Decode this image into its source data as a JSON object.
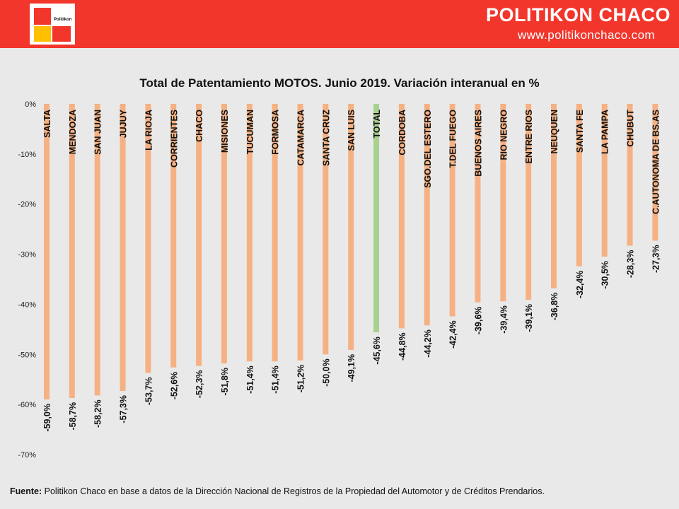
{
  "header": {
    "logo_text": "Politikon",
    "brand_name": "POLITIKON CHACO",
    "brand_url": "www.politikonchaco.com",
    "colors": {
      "bar_red": "#f2362c",
      "logo_red": "#f2362c",
      "logo_yellow": "#ffc000"
    }
  },
  "footer": {
    "label": "Fuente:",
    "text": "Politikon Chaco en base a datos de la Dirección Nacional de Registros de la Propiedad del Automotor y de Créditos Prendarios."
  },
  "chart_data": {
    "type": "bar",
    "title": "Total de Patentamiento MOTOS. Junio 2019. Variación interanual en %",
    "xlabel": "",
    "ylabel": "",
    "ylim": [
      -70,
      0
    ],
    "yticks": [
      "0%",
      "-10%",
      "-20%",
      "-30%",
      "-40%",
      "-50%",
      "-60%",
      "-70%"
    ],
    "ytick_values": [
      0,
      -10,
      -20,
      -30,
      -40,
      -50,
      -60,
      -70
    ],
    "grid": false,
    "categories": [
      "SALTA",
      "MENDOZA",
      "SAN JUAN",
      "JUJUY",
      "LA RIOJA",
      "CORRIENTES",
      "CHACO",
      "MISIONES",
      "TUCUMAN",
      "FORMOSA",
      "CATAMARCA",
      "SANTA CRUZ",
      "SAN LUIS",
      "TOTAL",
      "CORDOBA",
      "SGO.DEL ESTERO",
      "T.DEL FUEGO",
      "BUENOS AIRES",
      "RIO NEGRO",
      "ENTRE RIOS",
      "NEUQUEN",
      "SANTA FE",
      "LA PAMPA",
      "CHUBUT",
      "C.AUTONOMA DE BS.AS"
    ],
    "values": [
      -59.0,
      -58.7,
      -58.2,
      -57.3,
      -53.7,
      -52.6,
      -52.3,
      -51.8,
      -51.4,
      -51.4,
      -51.2,
      -50.0,
      -49.1,
      -45.6,
      -44.8,
      -44.2,
      -42.4,
      -39.6,
      -39.4,
      -39.1,
      -36.8,
      -32.4,
      -30.5,
      -28.3,
      -27.3
    ],
    "data_labels": [
      "-59,0%",
      "-58,7%",
      "-58,2%",
      "-57,3%",
      "-53,7%",
      "-52,6%",
      "-52,3%",
      "-51,8%",
      "-51,4%",
      "-51,4%",
      "-51,2%",
      "-50,0%",
      "-49,1%",
      "-45,6%",
      "-44,8%",
      "-44,2%",
      "-42,4%",
      "-39,6%",
      "-39,4%",
      "-39,1%",
      "-36,8%",
      "-32,4%",
      "-30,5%",
      "-28,3%",
      "-27,3%"
    ],
    "bar_color": "#f5b183",
    "highlight_category": "TOTAL",
    "highlight_color": "#a9d18e"
  }
}
